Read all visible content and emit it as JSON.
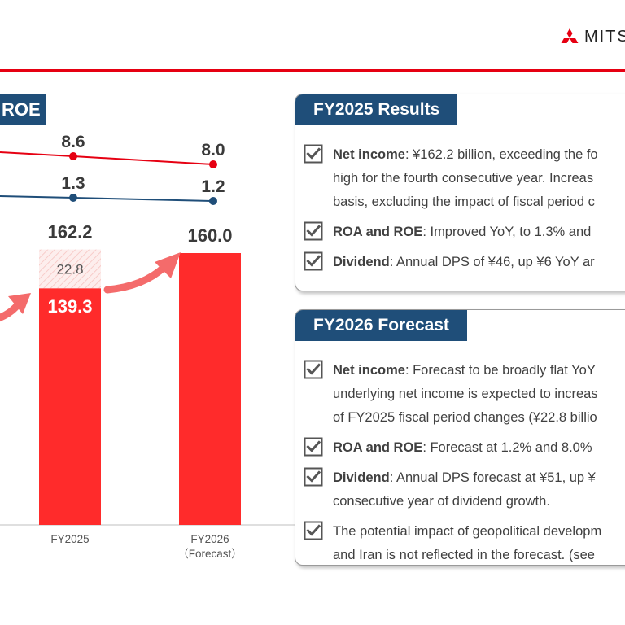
{
  "header": {
    "logo_text": "MITS"
  },
  "left_panel": {
    "title": "ROE"
  },
  "chart_data": {
    "type": "bar",
    "categories": [
      "FY2025",
      "FY2026\n(Forecast)"
    ],
    "category_labels": [
      [
        "FY2025"
      ],
      [
        "FY2026",
        "（Forecast）"
      ]
    ],
    "series": [
      {
        "name": "",
        "values": [
          139.3,
          160.0
        ]
      },
      {
        "name": "",
        "values": [
          22.8,
          null
        ]
      }
    ],
    "totals": [
      162.2,
      160.0
    ],
    "bar_labels": [
      "139.3",
      "160.0"
    ],
    "segment_labels": [
      "22.8",
      ""
    ],
    "total_labels": [
      "162.2",
      "160.0"
    ],
    "roe_line": {
      "values": [
        8.6,
        8.0
      ],
      "labels": [
        "8.6",
        "8.0"
      ]
    },
    "roa_line": {
      "values": [
        1.3,
        1.2
      ],
      "labels": [
        "1.3",
        "1.2"
      ]
    },
    "colors": {
      "bar": "#ff2b2b",
      "segment": "#fbe3e1",
      "roe": "#e60012",
      "roa": "#1f4e79",
      "arrow": "#f46b6b"
    }
  },
  "results": {
    "title": "FY2025 Results",
    "items": [
      {
        "bold": "Net income",
        "lines": [
          ": ¥162.2 billion, exceeding the fo",
          "high for the fourth consecutive year. Increas",
          "basis, excluding the impact of fiscal period c"
        ]
      },
      {
        "bold": "ROA and ROE",
        "lines": [
          ": Improved YoY, to 1.3% and"
        ]
      },
      {
        "bold": "Dividend",
        "lines": [
          ": Annual DPS of ¥46, up ¥6 YoY ar"
        ]
      }
    ]
  },
  "forecast": {
    "title": "FY2026 Forecast",
    "items": [
      {
        "bold": "Net income",
        "lines": [
          ": Forecast to be broadly flat YoY",
          "underlying net income is expected to increas",
          "of FY2025 fiscal period changes (¥22.8 billio"
        ]
      },
      {
        "bold": "ROA and ROE",
        "lines": [
          ": Forecast at 1.2% and 8.0%"
        ]
      },
      {
        "bold": "Dividend",
        "lines": [
          ": Annual DPS forecast at ¥51, up ¥",
          "consecutive year of dividend growth."
        ]
      },
      {
        "bold": "",
        "lines": [
          "The potential impact of geopolitical developm",
          "and Iran is not reflected in the forecast. (see"
        ]
      }
    ]
  }
}
